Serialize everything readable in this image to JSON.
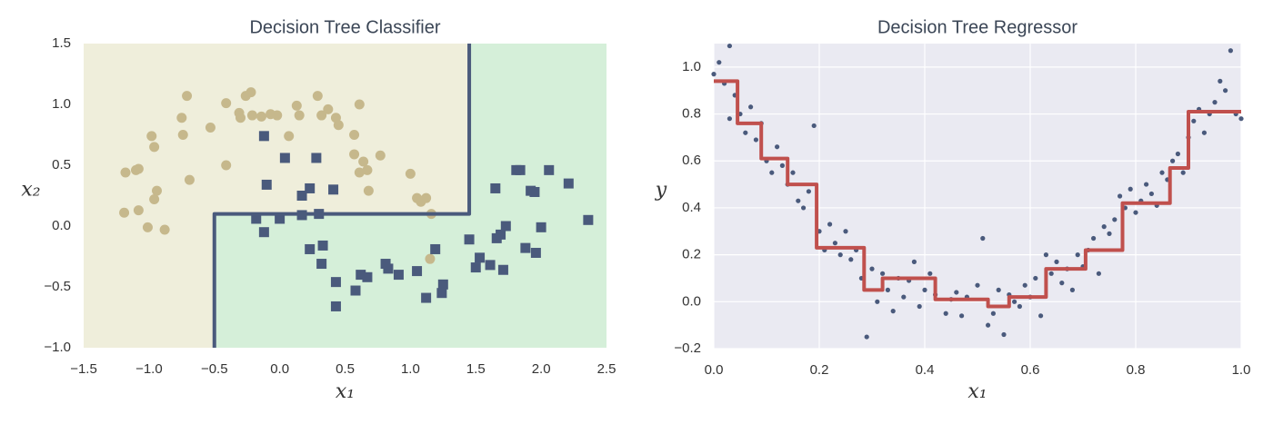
{
  "chart_data": [
    {
      "type": "scatter",
      "title": "Decision Tree Classifier",
      "x_label": "x₁",
      "y_label": "x₂",
      "xlim": [
        -1.5,
        2.5
      ],
      "ylim": [
        -1.0,
        1.5
      ],
      "xticks": [
        {
          "value": -1.5,
          "label": "−1.5"
        },
        {
          "value": -1.0,
          "label": "−1.0"
        },
        {
          "value": -0.5,
          "label": "−0.5"
        },
        {
          "value": 0.0,
          "label": "0.0"
        },
        {
          "value": 0.5,
          "label": "0.5"
        },
        {
          "value": 1.0,
          "label": "1.0"
        },
        {
          "value": 1.5,
          "label": "1.5"
        },
        {
          "value": 2.0,
          "label": "2.0"
        },
        {
          "value": 2.5,
          "label": "2.5"
        }
      ],
      "yticks": [
        {
          "value": -1.0,
          "label": "−1.0"
        },
        {
          "value": -0.5,
          "label": "−0.5"
        },
        {
          "value": 0.0,
          "label": "0.0"
        },
        {
          "value": 0.5,
          "label": "0.5"
        },
        {
          "value": 1.0,
          "label": "1.0"
        },
        {
          "value": 1.5,
          "label": "1.5"
        }
      ],
      "grid": false,
      "region_colors": [
        "#efeedb",
        "#d5efd9"
      ],
      "series": [
        {
          "color": "#c6b88c",
          "marker": "circle",
          "x": [
            -1.18,
            -1.1,
            -1.08,
            -1.19,
            -1.08,
            -1.01,
            -0.88,
            -0.98,
            -0.96,
            -0.94,
            -0.96,
            -0.71,
            -0.75,
            -0.74,
            -0.69,
            -0.53,
            -0.41,
            -0.41,
            -0.3,
            -0.26,
            -0.22,
            -0.31,
            -0.21,
            -0.14,
            -0.07,
            0.13,
            0.15,
            0.29,
            0.32,
            0.37,
            0.43,
            0.45,
            0.61,
            0.57,
            0.57,
            0.64,
            0.61,
            0.68,
            0.77,
            1.0,
            1.05,
            1.08,
            1.12,
            1.16,
            1.15,
            0.67,
            0.07,
            -0.02
          ],
          "values": [
            0.44,
            0.46,
            0.47,
            0.11,
            0.13,
            -0.01,
            -0.03,
            0.74,
            0.65,
            0.29,
            0.22,
            1.07,
            0.89,
            0.75,
            0.38,
            0.81,
            0.5,
            1.01,
            0.89,
            1.07,
            1.1,
            0.93,
            0.91,
            0.9,
            0.92,
            0.99,
            0.91,
            1.07,
            0.91,
            0.96,
            0.89,
            0.83,
            1.0,
            0.75,
            0.59,
            0.53,
            0.44,
            0.29,
            0.58,
            0.43,
            0.23,
            0.2,
            0.23,
            0.1,
            -0.27,
            0.46,
            0.74,
            0.91
          ]
        },
        {
          "color": "#4a5a7c",
          "marker": "square",
          "x": [
            -0.12,
            -0.1,
            0.04,
            0.28,
            0.17,
            0.23,
            0.41,
            -0.18,
            -0.12,
            0.0,
            0.17,
            0.3,
            0.23,
            0.33,
            0.32,
            0.43,
            0.43,
            0.58,
            0.62,
            0.67,
            0.81,
            0.83,
            0.91,
            1.05,
            1.12,
            1.19,
            1.24,
            1.25,
            1.45,
            1.5,
            1.53,
            1.61,
            1.71,
            1.66,
            1.69,
            1.73,
            1.65,
            1.81,
            1.84,
            1.92,
            1.95,
            2.06,
            2.21,
            2.0,
            1.88,
            1.96,
            2.36
          ],
          "values": [
            0.74,
            0.34,
            0.56,
            0.56,
            0.25,
            0.31,
            0.3,
            0.06,
            -0.05,
            0.06,
            0.09,
            0.1,
            -0.19,
            -0.16,
            -0.31,
            -0.46,
            -0.66,
            -0.53,
            -0.4,
            -0.42,
            -0.31,
            -0.35,
            -0.4,
            -0.37,
            -0.59,
            -0.19,
            -0.55,
            -0.48,
            -0.11,
            -0.34,
            -0.26,
            -0.32,
            -0.36,
            -0.1,
            -0.07,
            0.0,
            0.31,
            0.46,
            0.46,
            0.29,
            0.28,
            0.46,
            0.35,
            -0.01,
            -0.18,
            -0.22,
            0.05
          ]
        }
      ],
      "line": {
        "color": "#4a5a7c",
        "x": [
          -0.5,
          -0.5,
          1.45,
          1.45
        ],
        "values": [
          -1.0,
          0.1,
          0.1,
          1.5
        ]
      }
    },
    {
      "type": "scatter",
      "title": "Decision Tree Regressor",
      "x_label": "x₁",
      "y_label": "y",
      "xlim": [
        0.0,
        1.0
      ],
      "ylim": [
        -0.2,
        1.1
      ],
      "xticks": [
        {
          "value": 0.0,
          "label": "0.0"
        },
        0.2,
        0.4,
        0.6,
        0.8,
        {
          "value": 1.0,
          "label": "1.0"
        }
      ],
      "yticks": [
        {
          "value": -0.2,
          "label": "−0.2"
        },
        {
          "value": 0.0,
          "label": "0.0"
        },
        0.2,
        0.4,
        0.6,
        0.8,
        {
          "value": 1.0,
          "label": "1.0"
        }
      ],
      "grid": true,
      "background": "#eaeaf2",
      "series": [
        {
          "color": "#4a5a7c",
          "marker": "dot",
          "x": [
            0.0,
            0.01,
            0.02,
            0.03,
            0.03,
            0.04,
            0.05,
            0.06,
            0.07,
            0.08,
            0.09,
            0.1,
            0.11,
            0.12,
            0.13,
            0.14,
            0.15,
            0.16,
            0.17,
            0.18,
            0.19,
            0.2,
            0.21,
            0.22,
            0.23,
            0.24,
            0.25,
            0.26,
            0.27,
            0.28,
            0.29,
            0.3,
            0.31,
            0.32,
            0.33,
            0.34,
            0.35,
            0.36,
            0.37,
            0.38,
            0.39,
            0.4,
            0.41,
            0.42,
            0.44,
            0.45,
            0.46,
            0.47,
            0.48,
            0.5,
            0.51,
            0.52,
            0.53,
            0.54,
            0.55,
            0.56,
            0.57,
            0.58,
            0.59,
            0.6,
            0.61,
            0.62,
            0.63,
            0.64,
            0.65,
            0.66,
            0.67,
            0.68,
            0.69,
            0.7,
            0.71,
            0.72,
            0.73,
            0.74,
            0.75,
            0.76,
            0.77,
            0.78,
            0.79,
            0.8,
            0.81,
            0.82,
            0.83,
            0.84,
            0.85,
            0.86,
            0.87,
            0.88,
            0.89,
            0.9,
            0.91,
            0.92,
            0.93,
            0.94,
            0.95,
            0.96,
            0.97,
            0.98,
            0.99,
            1.0
          ],
          "values": [
            0.97,
            1.02,
            0.93,
            1.09,
            0.78,
            0.88,
            0.8,
            0.72,
            0.83,
            0.69,
            0.76,
            0.6,
            0.55,
            0.66,
            0.58,
            0.5,
            0.55,
            0.43,
            0.4,
            0.47,
            0.75,
            0.3,
            0.22,
            0.33,
            0.25,
            0.2,
            0.3,
            0.18,
            0.22,
            0.1,
            -0.15,
            0.14,
            0.0,
            0.12,
            0.05,
            -0.04,
            0.1,
            0.02,
            0.09,
            0.17,
            -0.02,
            0.05,
            0.12,
            0.03,
            -0.05,
            0.01,
            0.04,
            -0.06,
            0.02,
            0.07,
            0.27,
            -0.1,
            -0.05,
            0.05,
            -0.14,
            0.03,
            0.0,
            -0.02,
            0.07,
            0.02,
            0.1,
            -0.06,
            0.2,
            0.12,
            0.17,
            0.08,
            0.14,
            0.05,
            0.2,
            0.15,
            0.22,
            0.27,
            0.12,
            0.32,
            0.29,
            0.35,
            0.45,
            0.4,
            0.48,
            0.38,
            0.43,
            0.5,
            0.46,
            0.41,
            0.55,
            0.52,
            0.6,
            0.63,
            0.55,
            0.7,
            0.77,
            0.82,
            0.72,
            0.8,
            0.85,
            0.94,
            0.9,
            1.07,
            0.8,
            0.78
          ]
        }
      ],
      "line": {
        "color": "#c0504d",
        "x": [
          0.0,
          0.045,
          0.045,
          0.09,
          0.09,
          0.14,
          0.14,
          0.195,
          0.195,
          0.285,
          0.285,
          0.32,
          0.32,
          0.42,
          0.42,
          0.52,
          0.52,
          0.56,
          0.56,
          0.63,
          0.63,
          0.705,
          0.705,
          0.775,
          0.775,
          0.865,
          0.865,
          0.9,
          0.9,
          1.0
        ],
        "values": [
          0.94,
          0.94,
          0.76,
          0.76,
          0.61,
          0.61,
          0.5,
          0.5,
          0.23,
          0.23,
          0.05,
          0.05,
          0.1,
          0.1,
          0.01,
          0.01,
          -0.02,
          -0.02,
          0.02,
          0.02,
          0.14,
          0.14,
          0.22,
          0.22,
          0.42,
          0.42,
          0.57,
          0.57,
          0.81,
          0.81
        ]
      }
    }
  ]
}
